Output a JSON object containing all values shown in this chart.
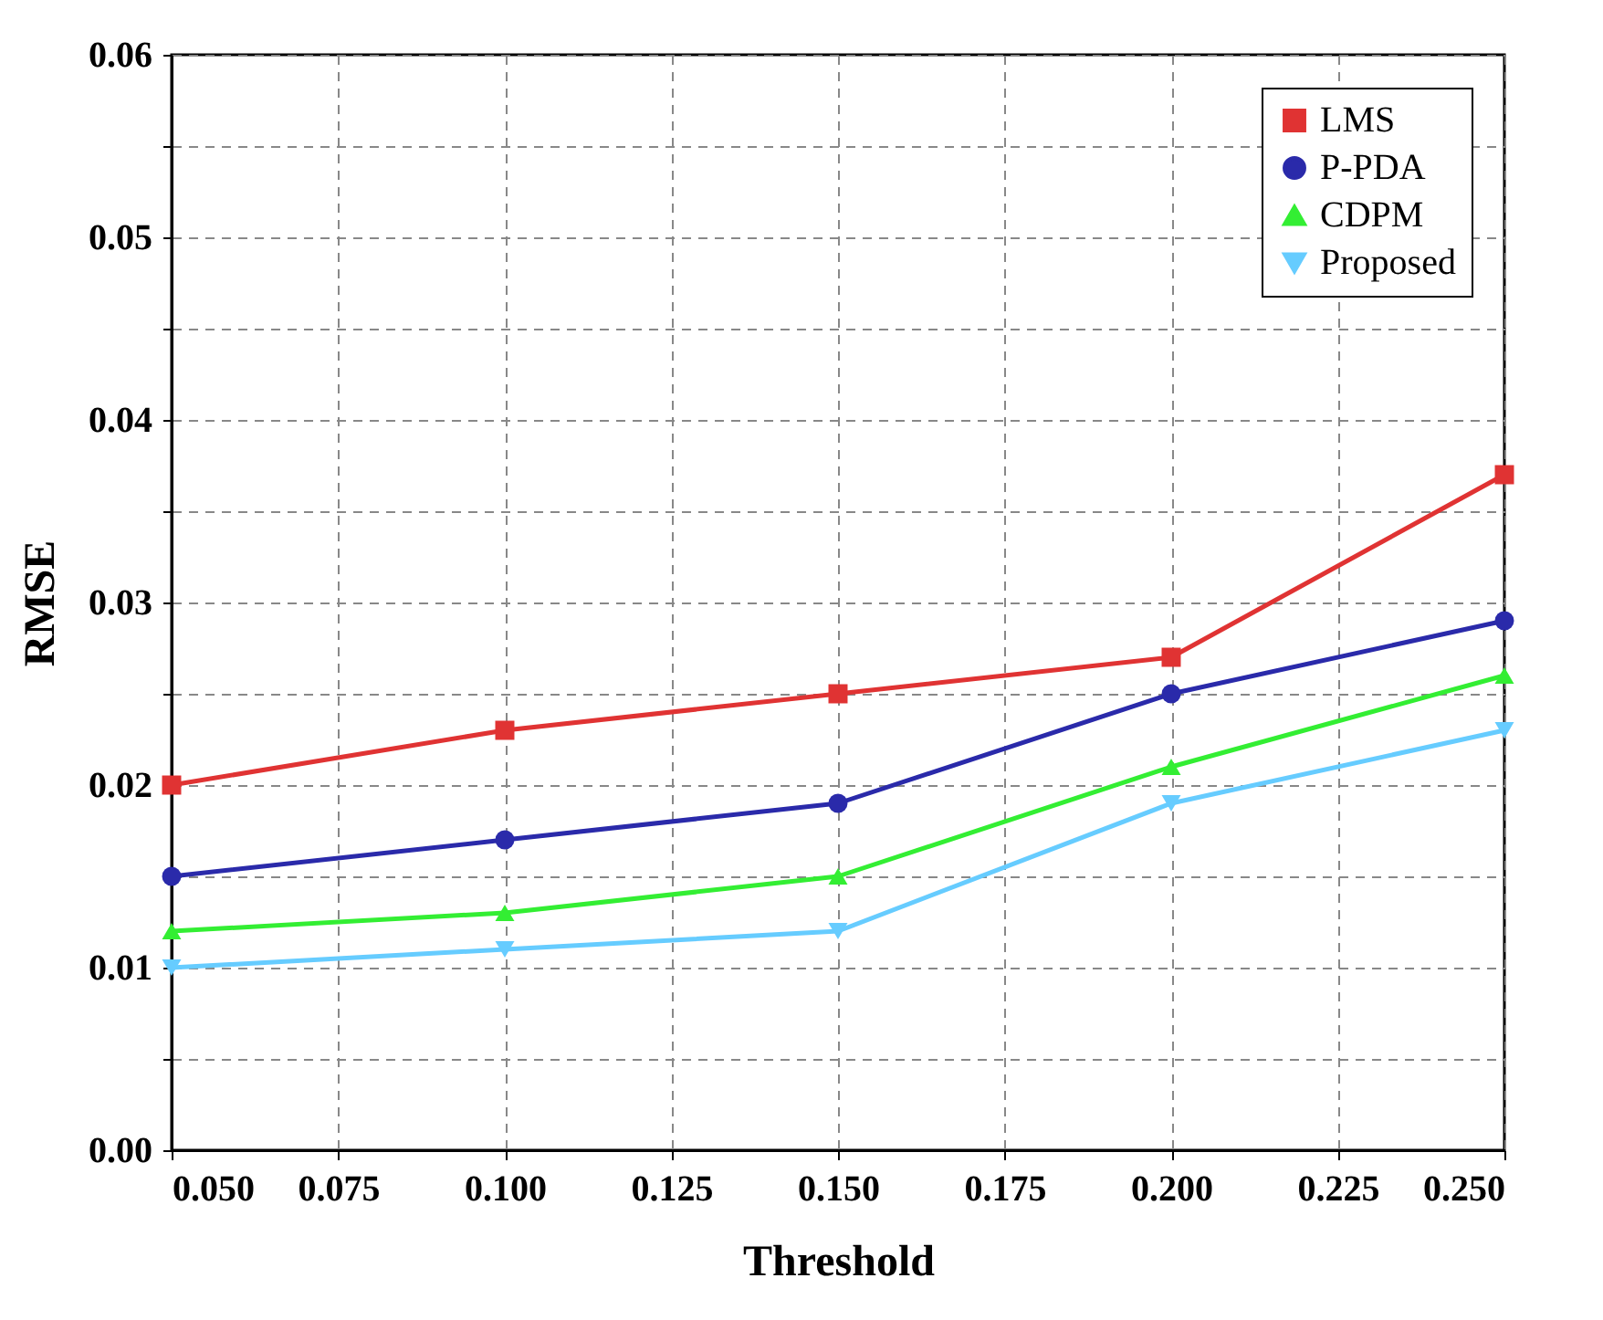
{
  "chart_data": {
    "type": "line",
    "xlabel": "Threshold",
    "ylabel": "RMSE",
    "x": [
      0.05,
      0.1,
      0.15,
      0.2,
      0.25
    ],
    "series": [
      {
        "name": "LMS",
        "color": "#e03333",
        "marker": "square",
        "values": [
          0.02,
          0.023,
          0.025,
          0.027,
          0.037
        ]
      },
      {
        "name": "P-PDA",
        "color": "#2a2aaa",
        "marker": "circle",
        "values": [
          0.015,
          0.017,
          0.019,
          0.025,
          0.029
        ]
      },
      {
        "name": "CDPM",
        "color": "#33ee33",
        "marker": "triangle",
        "values": [
          0.012,
          0.013,
          0.015,
          0.021,
          0.026
        ]
      },
      {
        "name": "Proposed",
        "color": "#66ccff",
        "marker": "triangle-down",
        "values": [
          0.01,
          0.011,
          0.012,
          0.019,
          0.023
        ]
      }
    ],
    "xlim": [
      0.05,
      0.25
    ],
    "xticks": [
      {
        "value": 0.05,
        "label": "0.050"
      },
      {
        "value": 0.075,
        "label": "0.075"
      },
      {
        "value": 0.1,
        "label": "0.100"
      },
      {
        "value": 0.125,
        "label": "0.125"
      },
      {
        "value": 0.15,
        "label": "0.150"
      },
      {
        "value": 0.175,
        "label": "0.175"
      },
      {
        "value": 0.2,
        "label": "0.200"
      },
      {
        "value": 0.225,
        "label": "0.225"
      },
      {
        "value": 0.25,
        "label": "0.250"
      }
    ],
    "ylim": [
      0,
      0.06
    ],
    "yticks": [
      {
        "value": 0,
        "label": "0.00"
      },
      {
        "value": 0.005,
        "label": null
      },
      {
        "value": 0.01,
        "label": "0.01"
      },
      {
        "value": 0.015,
        "label": null
      },
      {
        "value": 0.02,
        "label": "0.02"
      },
      {
        "value": 0.025,
        "label": null
      },
      {
        "value": 0.03,
        "label": "0.03"
      },
      {
        "value": 0.035,
        "label": null
      },
      {
        "value": 0.04,
        "label": "0.04"
      },
      {
        "value": 0.045,
        "label": null
      },
      {
        "value": 0.05,
        "label": "0.05"
      },
      {
        "value": 0.055,
        "label": null
      },
      {
        "value": 0.06,
        "label": "0.06"
      }
    ],
    "grid": true,
    "legend": "top right",
    "line_style": "solid"
  }
}
